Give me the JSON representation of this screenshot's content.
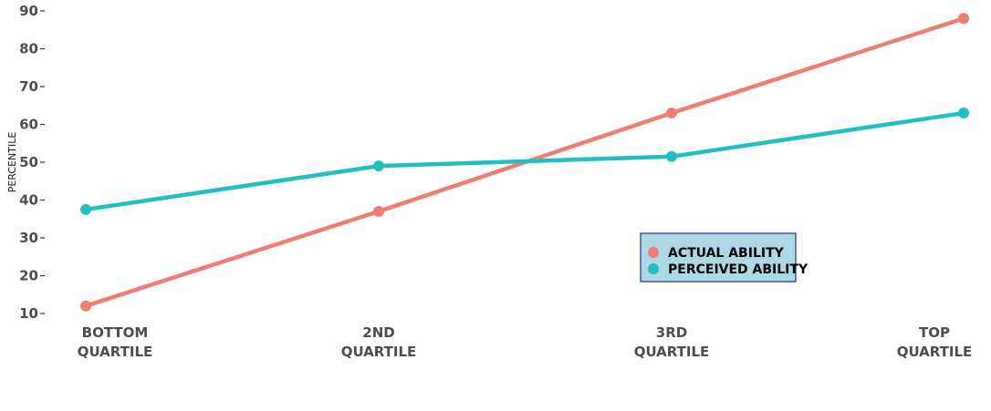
{
  "chart_data": {
    "type": "line",
    "categories": [
      "BOTTOM QUARTILE",
      "2ND QUARTILE",
      "3RD QUARTILE",
      "TOP QUARTILE"
    ],
    "series": [
      {
        "name": "ACTUAL ABILITY",
        "color": "#F07D74",
        "values": [
          12,
          37,
          63,
          88
        ]
      },
      {
        "name": "PERCEIVED ABILITY",
        "color": "#22BFC0",
        "values": [
          37.5,
          49,
          51.5,
          63
        ]
      }
    ],
    "title": "",
    "xlabel": "",
    "ylabel": "PERCENTILE",
    "ylim": [
      10,
      90
    ],
    "yticks": [
      10,
      20,
      30,
      40,
      50,
      60,
      70,
      80,
      90
    ],
    "grid": false,
    "legend": {
      "position": "center-right",
      "background": "#ADD8E6",
      "border": "#1F2F8F"
    }
  }
}
